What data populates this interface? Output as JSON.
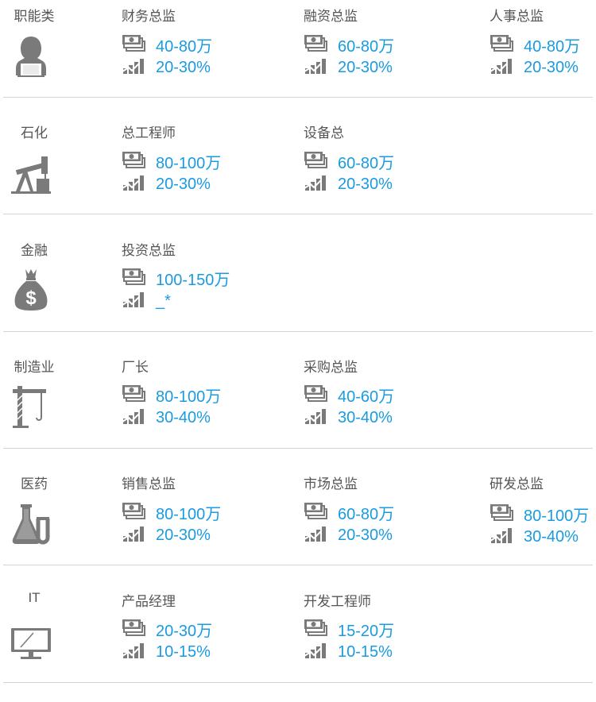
{
  "colors": {
    "value": "#1a9be0",
    "text": "#555555",
    "icon": "#7a7a7a"
  },
  "rows": [
    {
      "category": "职能类",
      "icon": "woman-at-laptop-icon",
      "jobs": [
        {
          "title": "财务总监",
          "salary": "40-80万",
          "growth": "20-30%"
        },
        {
          "title": "融资总监",
          "salary": "60-80万",
          "growth": "20-30%"
        },
        {
          "title": "人事总监",
          "salary": "40-80万",
          "growth": "20-30%"
        }
      ]
    },
    {
      "category": "石化",
      "icon": "oil-pump-icon",
      "jobs": [
        {
          "title": "总工程师",
          "salary": "80-100万",
          "growth": "20-30%"
        },
        {
          "title": "设备总",
          "salary": "60-80万",
          "growth": "20-30%"
        }
      ]
    },
    {
      "category": "金融",
      "icon": "money-bag-icon",
      "jobs": [
        {
          "title": "投资总监",
          "salary": "100-150万",
          "growth": "_*"
        }
      ]
    },
    {
      "category": "制造业",
      "icon": "crane-icon",
      "jobs": [
        {
          "title": "厂长",
          "salary": "80-100万",
          "growth": "30-40%"
        },
        {
          "title": "采购总监",
          "salary": "40-60万",
          "growth": "30-40%"
        }
      ]
    },
    {
      "category": "医药",
      "icon": "flask-icon",
      "jobs": [
        {
          "title": "销售总监",
          "salary": "80-100万",
          "growth": "20-30%"
        },
        {
          "title": "市场总监",
          "salary": "60-80万",
          "growth": "20-30%"
        },
        {
          "title": "研发总监",
          "salary": "80-100万",
          "growth": "30-40%"
        }
      ]
    },
    {
      "category": "IT",
      "icon": "monitor-icon",
      "jobs": [
        {
          "title": "产品经理",
          "salary": "20-30万",
          "growth": "10-15%"
        },
        {
          "title": "开发工程师",
          "salary": "15-20万",
          "growth": "10-15%"
        }
      ]
    }
  ]
}
